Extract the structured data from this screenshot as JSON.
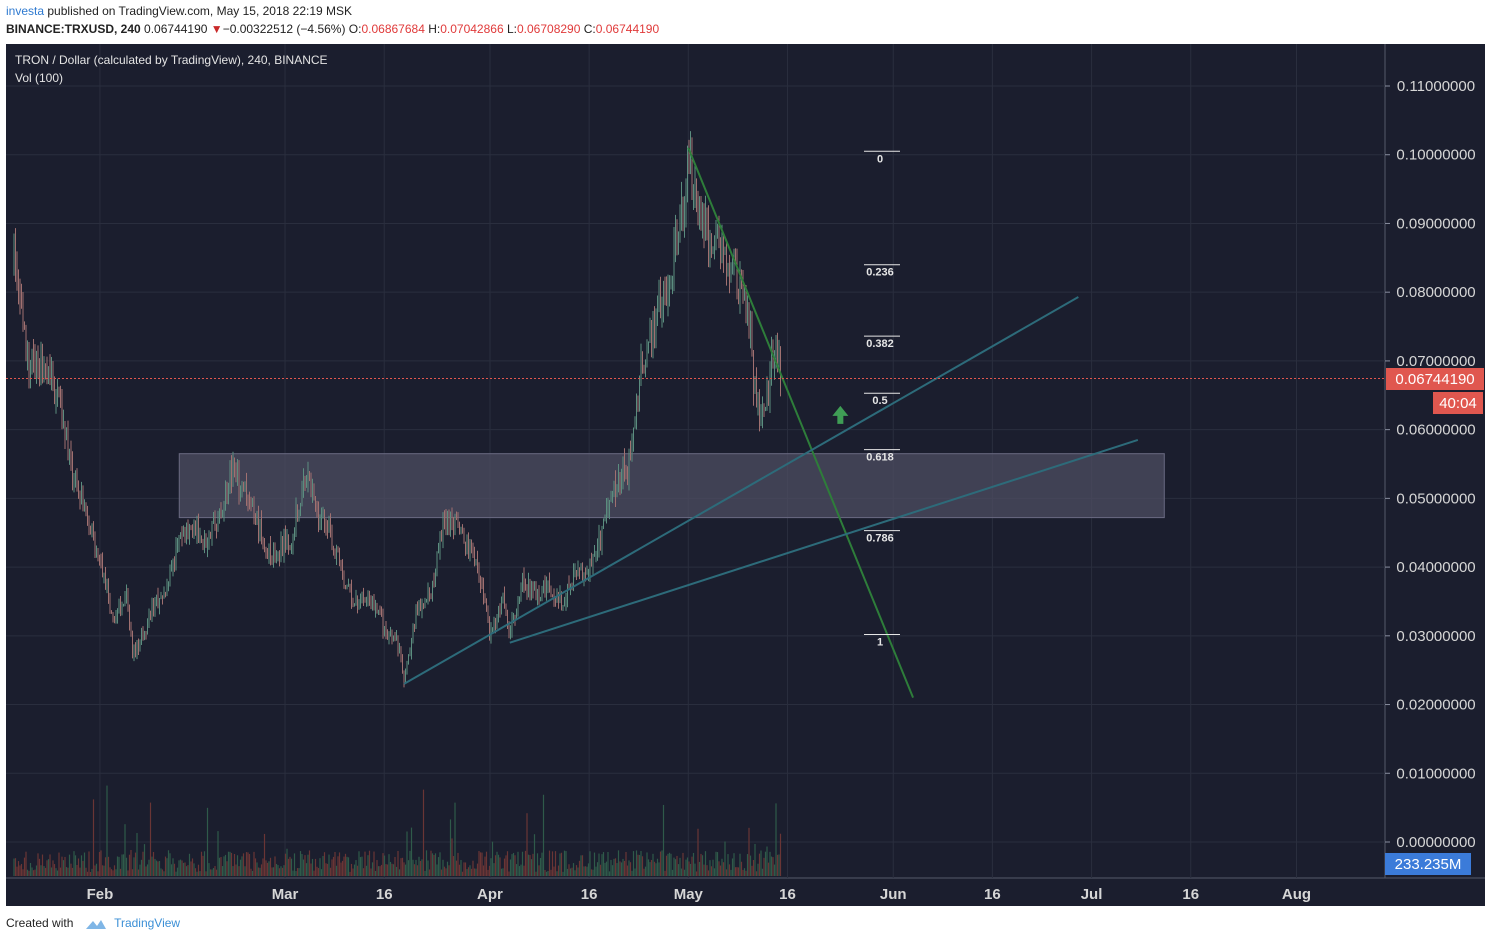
{
  "header": {
    "user": "investa",
    "published": "published on TradingView.com, May 15, 2018 22:19 MSK",
    "symbol": "BINANCE:TRXUSD, 240",
    "last": "0.06744190",
    "change_arrow": "▼",
    "change": "−0.00322512 (−4.56%)",
    "o_label": "O:",
    "o": "0.06867684",
    "h_label": "H:",
    "h": "0.07042866",
    "l_label": "L:",
    "l": "0.06708290",
    "c_label": "C:",
    "c": "0.06744190"
  },
  "legend": {
    "title": "TRON / Dollar (calculated by TradingView), 240, BINANCE",
    "volume": "Vol (100)"
  },
  "footer": {
    "created_with": "Created with",
    "brand": "TradingView"
  },
  "colors": {
    "background": "#1b1e2e",
    "grid": "#2a2e3e",
    "axis_text": "#d6d6d6",
    "price_line": "#e0574f",
    "up_candle": "#5b8d7f",
    "down_candle": "#a07070",
    "trend_down": "#2e7d3a",
    "trend_up": "#2d6b7a",
    "zone": "#4e4e62",
    "target_arrow": "#3f9d55",
    "volume_badge": "#3b7bd9"
  },
  "chart_data": {
    "type": "candlestick",
    "title": "TRON / Dollar (calculated by TradingView), 240, BINANCE",
    "price_axis": {
      "ticks": [
        "0.11000000",
        "0.10000000",
        "0.09000000",
        "0.08000000",
        "0.07000000",
        "0.06000000",
        "0.05000000",
        "0.04000000",
        "0.03000000",
        "0.02000000",
        "0.01000000",
        "0.00000000"
      ],
      "range": [
        0.0,
        0.11
      ]
    },
    "time_axis": {
      "ticks": [
        "Feb",
        "Mar",
        "16",
        "Apr",
        "16",
        "May",
        "16",
        "Jun",
        "16",
        "Jul",
        "16",
        "Aug"
      ],
      "range": [
        "2018-01-19",
        "2018-08-10"
      ]
    },
    "last_price": "0.06744190",
    "countdown": "40:04",
    "volume_label": "233.235M",
    "price_path": [
      [
        "2018-01-19",
        0.085
      ],
      [
        "2018-01-21",
        0.07
      ],
      [
        "2018-01-24",
        0.068
      ],
      [
        "2018-01-26",
        0.064
      ],
      [
        "2018-01-28",
        0.052
      ],
      [
        "2018-01-30",
        0.048
      ],
      [
        "2018-02-01",
        0.04
      ],
      [
        "2018-02-03",
        0.033
      ],
      [
        "2018-02-05",
        0.036
      ],
      [
        "2018-02-06",
        0.027
      ],
      [
        "2018-02-07",
        0.029
      ],
      [
        "2018-02-09",
        0.034
      ],
      [
        "2018-02-11",
        0.036
      ],
      [
        "2018-02-13",
        0.044
      ],
      [
        "2018-02-15",
        0.046
      ],
      [
        "2018-02-17",
        0.044
      ],
      [
        "2018-02-19",
        0.047
      ],
      [
        "2018-02-21",
        0.054
      ],
      [
        "2018-02-23",
        0.051
      ],
      [
        "2018-02-25",
        0.046
      ],
      [
        "2018-02-27",
        0.041
      ],
      [
        "2018-03-01",
        0.044
      ],
      [
        "2018-03-02",
        0.044
      ],
      [
        "2018-03-04",
        0.053
      ],
      [
        "2018-03-06",
        0.048
      ],
      [
        "2018-03-08",
        0.045
      ],
      [
        "2018-03-10",
        0.037
      ],
      [
        "2018-03-12",
        0.035
      ],
      [
        "2018-03-14",
        0.035
      ],
      [
        "2018-03-16",
        0.031
      ],
      [
        "2018-03-18",
        0.029
      ],
      [
        "2018-03-19",
        0.024
      ],
      [
        "2018-03-21",
        0.034
      ],
      [
        "2018-03-23",
        0.036
      ],
      [
        "2018-03-25",
        0.046
      ],
      [
        "2018-03-27",
        0.046
      ],
      [
        "2018-03-29",
        0.043
      ],
      [
        "2018-03-31",
        0.036
      ],
      [
        "2018-04-01",
        0.03
      ],
      [
        "2018-04-03",
        0.035
      ],
      [
        "2018-04-04",
        0.03
      ],
      [
        "2018-04-06",
        0.038
      ],
      [
        "2018-04-08",
        0.036
      ],
      [
        "2018-04-10",
        0.037
      ],
      [
        "2018-04-12",
        0.035
      ],
      [
        "2018-04-14",
        0.039
      ],
      [
        "2018-04-16",
        0.04
      ],
      [
        "2018-04-18",
        0.045
      ],
      [
        "2018-04-20",
        0.052
      ],
      [
        "2018-04-22",
        0.055
      ],
      [
        "2018-04-24",
        0.07
      ],
      [
        "2018-04-26",
        0.075
      ],
      [
        "2018-04-28",
        0.082
      ],
      [
        "2018-04-30",
        0.091
      ],
      [
        "2018-05-01",
        0.1
      ],
      [
        "2018-05-02",
        0.093
      ],
      [
        "2018-05-04",
        0.088
      ],
      [
        "2018-05-06",
        0.087
      ],
      [
        "2018-05-08",
        0.083
      ],
      [
        "2018-05-10",
        0.079
      ],
      [
        "2018-05-11",
        0.066
      ],
      [
        "2018-05-12",
        0.061
      ],
      [
        "2018-05-13",
        0.064
      ],
      [
        "2018-05-14",
        0.073
      ],
      [
        "2018-05-15",
        0.0674
      ]
    ],
    "fibonacci": {
      "levels": [
        {
          "label": "0",
          "price": 0.1005
        },
        {
          "label": "0.236",
          "price": 0.084
        },
        {
          "label": "0.382",
          "price": 0.0736
        },
        {
          "label": "0.5",
          "price": 0.0653
        },
        {
          "label": "0.618",
          "price": 0.0571
        },
        {
          "label": "0.786",
          "price": 0.0453
        },
        {
          "label": "1",
          "price": 0.0302
        }
      ]
    },
    "trendlines": [
      {
        "kind": "resistance",
        "from": [
          "2018-05-01",
          0.101
        ],
        "to": [
          "2018-06-04",
          0.021
        ]
      },
      {
        "kind": "support",
        "from": [
          "2018-03-19",
          0.023
        ],
        "to": [
          "2018-06-29",
          0.0793
        ]
      },
      {
        "kind": "support",
        "from": [
          "2018-04-04",
          0.029
        ],
        "to": [
          "2018-07-08",
          0.0585
        ]
      }
    ],
    "zone": {
      "from": "2018-02-13",
      "to": "2018-07-12",
      "top": 0.0565,
      "bottom": 0.0472
    },
    "target_arrow": [
      "2018-05-24",
      0.062
    ]
  }
}
